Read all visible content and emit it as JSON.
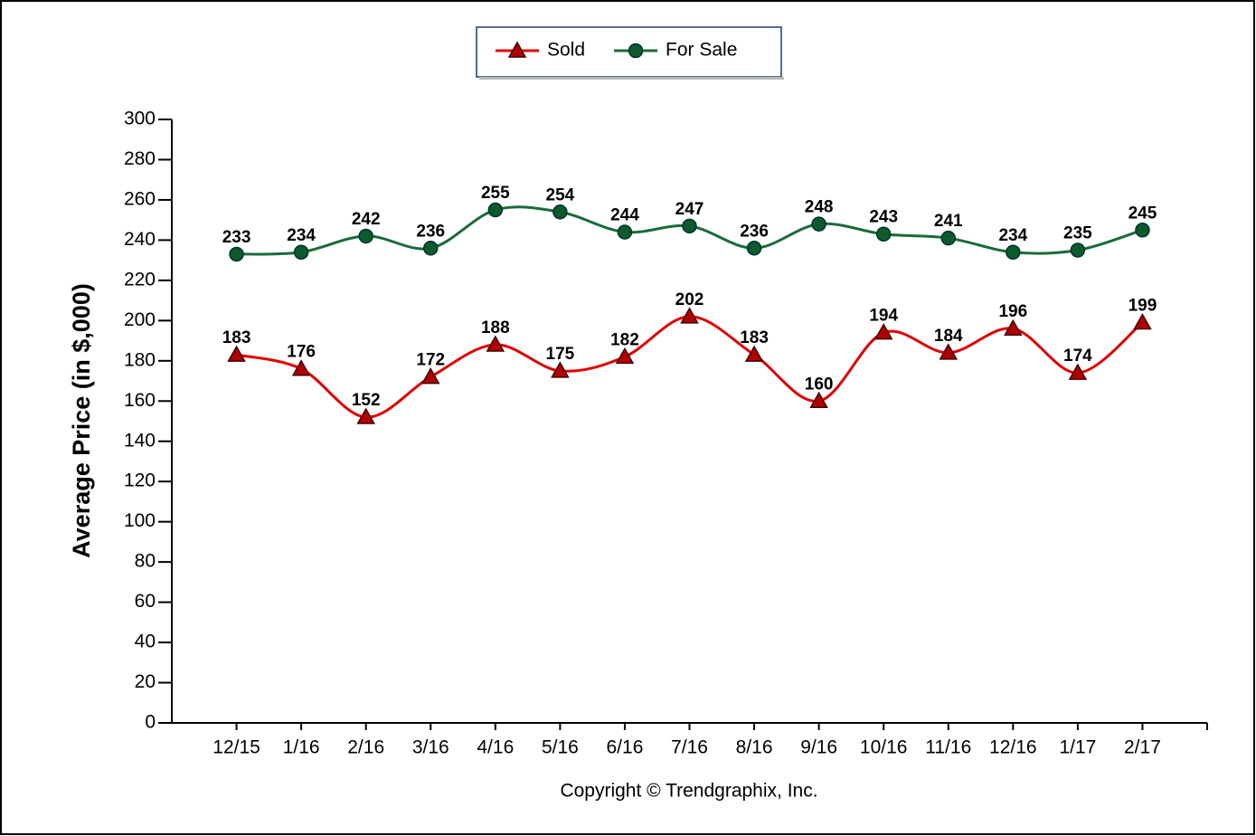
{
  "chart_data": {
    "type": "line",
    "categories": [
      "12/15",
      "1/16",
      "2/16",
      "3/16",
      "4/16",
      "5/16",
      "6/16",
      "7/16",
      "8/16",
      "9/16",
      "10/16",
      "11/16",
      "12/16",
      "1/17",
      "2/17"
    ],
    "series": [
      {
        "name": "Sold",
        "color": "#e00000",
        "marker": "triangle",
        "marker_color": "#b00000",
        "values": [
          183,
          176,
          152,
          172,
          188,
          175,
          182,
          202,
          183,
          160,
          194,
          184,
          196,
          174,
          199
        ]
      },
      {
        "name": "For Sale",
        "color": "#1a6b3a",
        "marker": "circle",
        "marker_color": "#0d5a2a",
        "values": [
          233,
          234,
          242,
          236,
          255,
          254,
          244,
          247,
          236,
          248,
          243,
          241,
          234,
          235,
          245
        ]
      }
    ],
    "ylabel": "Average Price (in $,000)",
    "copyright": "Copyright © Trendgraphix, Inc.",
    "ylim": [
      0,
      300
    ],
    "yticks": [
      0,
      20,
      40,
      60,
      80,
      100,
      120,
      140,
      160,
      180,
      200,
      220,
      240,
      260,
      280,
      300
    ],
    "grid": false,
    "smooth": true,
    "legend": "top"
  }
}
